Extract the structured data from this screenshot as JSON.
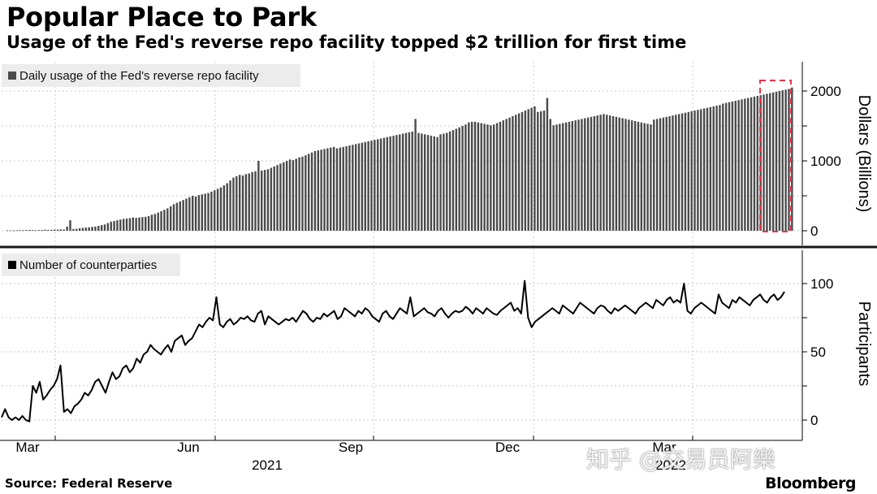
{
  "header": {
    "title": "Popular Place to Park",
    "subtitle": "Usage of the Fed's reverse repo facility topped $2 trillion for first time"
  },
  "footer": {
    "source": "Source: Federal Reserve",
    "brand": "Bloomberg"
  },
  "watermark": "知乎 @交易员阿樂",
  "colors": {
    "bars": "#4a4a4a",
    "line": "#000000",
    "grid": "#c8c8c8",
    "divider": "#1a1a1a",
    "highlight": "#e8334a",
    "legend_bg": "#ececec"
  },
  "x_axis": {
    "months": [
      "Mar",
      "Jun",
      "Sep",
      "Dec",
      "Mar"
    ],
    "years": [
      "2021",
      "2022"
    ]
  },
  "chart_data": [
    {
      "type": "bar",
      "legend": "Daily usage of the Fed's reverse repo facility",
      "ylabel": "Dollars (Billions)",
      "ylim": [
        0,
        2200
      ],
      "yticks": [
        0,
        1000,
        2000
      ],
      "grid": true,
      "legend_position": "top-left",
      "highlight_box": "last ~2 weeks (usage above $2 trillion)",
      "x_start": "2021-02-24",
      "x_end": "2022-05-04",
      "values": [
        5,
        6,
        5,
        7,
        8,
        8,
        10,
        12,
        10,
        8,
        10,
        12,
        15,
        12,
        14,
        16,
        16,
        20,
        18,
        60,
        150,
        25,
        28,
        35,
        40,
        45,
        50,
        55,
        60,
        70,
        80,
        90,
        110,
        130,
        140,
        150,
        160,
        170,
        175,
        180,
        190,
        185,
        190,
        195,
        200,
        210,
        230,
        240,
        260,
        280,
        300,
        320,
        350,
        380,
        400,
        420,
        440,
        460,
        480,
        500,
        490,
        510,
        520,
        530,
        540,
        560,
        580,
        600,
        620,
        650,
        680,
        720,
        760,
        780,
        800,
        790,
        810,
        820,
        840,
        850,
        1000,
        860,
        870,
        880,
        900,
        920,
        940,
        960,
        980,
        1000,
        1020,
        1010,
        1030,
        1050,
        1060,
        1080,
        1100,
        1120,
        1140,
        1150,
        1160,
        1170,
        1180,
        1190,
        1200,
        1180,
        1190,
        1200,
        1210,
        1220,
        1230,
        1240,
        1250,
        1260,
        1270,
        1280,
        1290,
        1300,
        1310,
        1320,
        1330,
        1340,
        1350,
        1360,
        1370,
        1380,
        1390,
        1400,
        1410,
        1420,
        1600,
        1400,
        1390,
        1380,
        1370,
        1360,
        1350,
        1340,
        1380,
        1390,
        1400,
        1420,
        1440,
        1460,
        1480,
        1500,
        1520,
        1550,
        1560,
        1560,
        1550,
        1540,
        1530,
        1520,
        1510,
        1520,
        1540,
        1560,
        1580,
        1600,
        1620,
        1640,
        1660,
        1680,
        1700,
        1720,
        1740,
        1760,
        1780,
        1700,
        1710,
        1720,
        1900,
        1600,
        1510,
        1520,
        1530,
        1540,
        1550,
        1560,
        1570,
        1580,
        1590,
        1600,
        1610,
        1620,
        1630,
        1640,
        1650,
        1660,
        1670,
        1660,
        1650,
        1640,
        1630,
        1620,
        1610,
        1600,
        1590,
        1580,
        1570,
        1560,
        1550,
        1540,
        1530,
        1520,
        1590,
        1600,
        1610,
        1620,
        1630,
        1640,
        1650,
        1660,
        1670,
        1680,
        1690,
        1700,
        1710,
        1720,
        1730,
        1740,
        1750,
        1760,
        1770,
        1780,
        1790,
        1800,
        1820,
        1830,
        1840,
        1850,
        1860,
        1870,
        1880,
        1890,
        1900,
        1910,
        1920,
        1930,
        1940,
        1950,
        1960,
        1970,
        1980,
        1990,
        2000,
        2010,
        2020,
        2030,
        2050
      ]
    },
    {
      "type": "line",
      "legend": "Number of counterparties",
      "ylabel": "Participants",
      "ylim": [
        -5,
        125
      ],
      "yticks": [
        0,
        50,
        100
      ],
      "grid": true,
      "legend_position": "top-left",
      "x_start": "2021-02-24",
      "x_end": "2022-05-04",
      "values": [
        2,
        8,
        2,
        0,
        2,
        0,
        3,
        0,
        -1,
        25,
        20,
        28,
        15,
        18,
        22,
        25,
        30,
        40,
        6,
        8,
        5,
        10,
        12,
        15,
        20,
        18,
        22,
        28,
        30,
        25,
        20,
        28,
        35,
        30,
        32,
        38,
        40,
        35,
        38,
        45,
        42,
        48,
        50,
        55,
        52,
        50,
        48,
        52,
        55,
        50,
        58,
        60,
        62,
        55,
        58,
        60,
        65,
        70,
        68,
        72,
        75,
        73,
        90,
        70,
        68,
        72,
        74,
        70,
        72,
        75,
        74,
        76,
        73,
        72,
        78,
        80,
        70,
        76,
        74,
        72,
        70,
        72,
        74,
        73,
        75,
        72,
        76,
        80,
        78,
        74,
        72,
        75,
        74,
        78,
        76,
        78,
        80,
        74,
        76,
        82,
        80,
        78,
        76,
        80,
        78,
        82,
        80,
        76,
        74,
        72,
        78,
        80,
        76,
        74,
        78,
        82,
        80,
        78,
        90,
        76,
        78,
        80,
        82,
        79,
        78,
        76,
        80,
        82,
        78,
        75,
        78,
        80,
        79,
        80,
        83,
        81,
        78,
        82,
        80,
        78,
        82,
        80,
        78,
        77,
        80,
        82,
        84,
        86,
        80,
        82,
        78,
        102,
        75,
        68,
        72,
        74,
        76,
        78,
        80,
        82,
        80,
        78,
        84,
        82,
        80,
        78,
        82,
        86,
        84,
        82,
        80,
        78,
        82,
        84,
        83,
        80,
        78,
        82,
        80,
        82,
        84,
        82,
        80,
        78,
        82,
        84,
        86,
        84,
        82,
        88,
        86,
        84,
        88,
        90,
        86,
        88,
        86,
        100,
        80,
        78,
        82,
        84,
        86,
        84,
        82,
        80,
        78,
        92,
        86,
        84,
        82,
        88,
        86,
        90,
        88,
        86,
        84,
        88,
        90,
        92,
        88,
        86,
        90,
        92,
        88,
        90,
        94
      ]
    }
  ]
}
